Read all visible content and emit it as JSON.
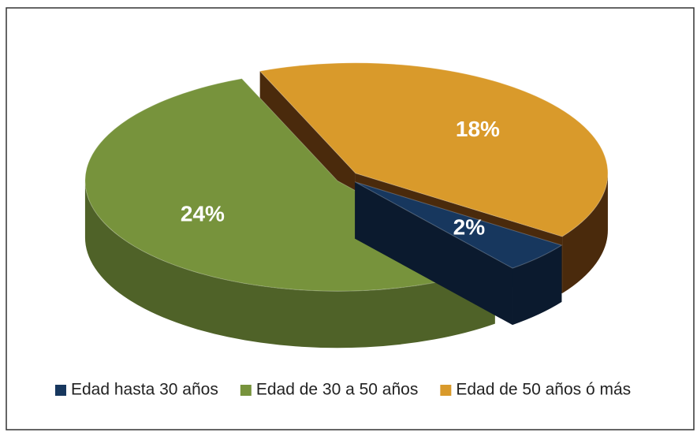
{
  "chart_data": {
    "type": "pie3d",
    "categories": [
      "Edad hasta 30 años",
      "Edad de 30 a 50 años",
      "Edad de 50 años ó más"
    ],
    "values": [
      2,
      24,
      18
    ],
    "value_labels": [
      "2%",
      "24%",
      "18%"
    ],
    "colors": [
      "#17375e",
      "#77933c",
      "#d99a2b"
    ],
    "side_colors": [
      "#0b1a2e",
      "#4f6228",
      "#4a2a0c"
    ],
    "legend": "bottom"
  }
}
